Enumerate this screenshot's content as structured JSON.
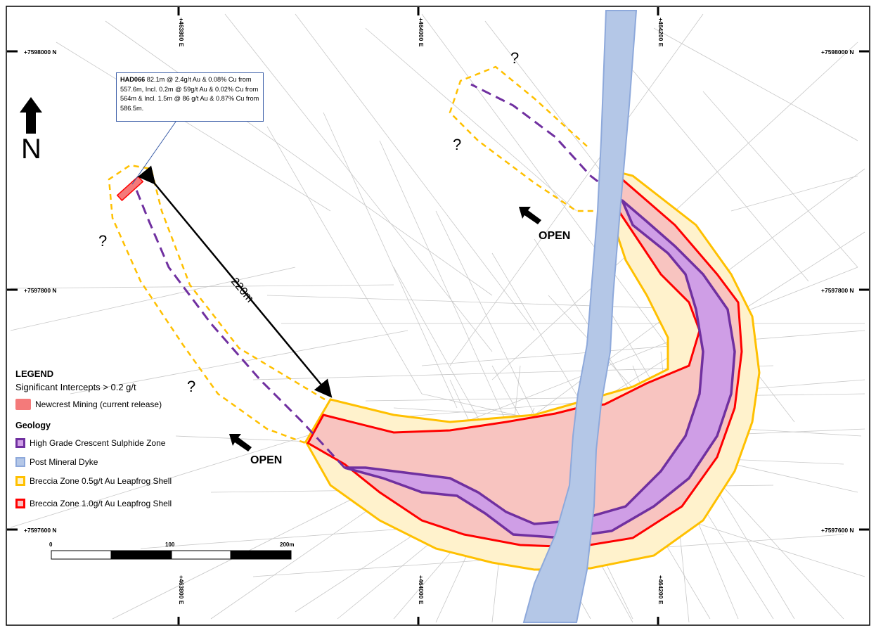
{
  "callout": {
    "hole_id": "HAD066",
    "text": "82.1m @ 2.4g/t Au & 0.08% Cu from 557.6m, Incl. 0.2m @ 59g/t Au & 0.02% Cu from 564m & Incl. 1.5m @ 86 g/t Au & 0.87% Cu from 586.5m."
  },
  "distance_label": "220m",
  "north_label": "N",
  "question_mark": "?",
  "open_label": "OPEN",
  "grid": {
    "eastings": [
      "+463800 E",
      "+464000 E",
      "+464200 E"
    ],
    "northings": [
      "+7598000 N",
      "+7597800 N",
      "+7597600 N"
    ]
  },
  "scale_bar": {
    "labels": [
      "0",
      "100",
      "200m"
    ]
  },
  "legend": {
    "title": "LEGEND",
    "intercepts_heading": "Significant Intercepts > 0.2 g/t",
    "intercept_item": {
      "label": "Newcrest Mining (current release)",
      "color": "#f47a7a"
    },
    "geology_heading": "Geology",
    "geology_items": [
      {
        "label": "High Grade Crescent Sulphide Zone",
        "fill": "#cf9ee6",
        "stroke": "#7030a0"
      },
      {
        "label": "Post Mineral Dyke",
        "fill": "#b4c7e7",
        "stroke": "#8ea9db"
      },
      {
        "label": "Breccia Zone 0.5g/t Au Leapfrog Shell",
        "fill": "#fff2cc",
        "stroke": "#ffc000"
      },
      {
        "label": "Breccia Zone 1.0g/t Au Leapfrog Shell",
        "fill": "#f8c0c0",
        "stroke": "#ff0000"
      }
    ]
  },
  "colors": {
    "purple": "#7030a0",
    "red": "#ff0000",
    "orange": "#ffc000",
    "dyke": "#b4c7e7",
    "drill_traces": "#bfbfbf"
  }
}
